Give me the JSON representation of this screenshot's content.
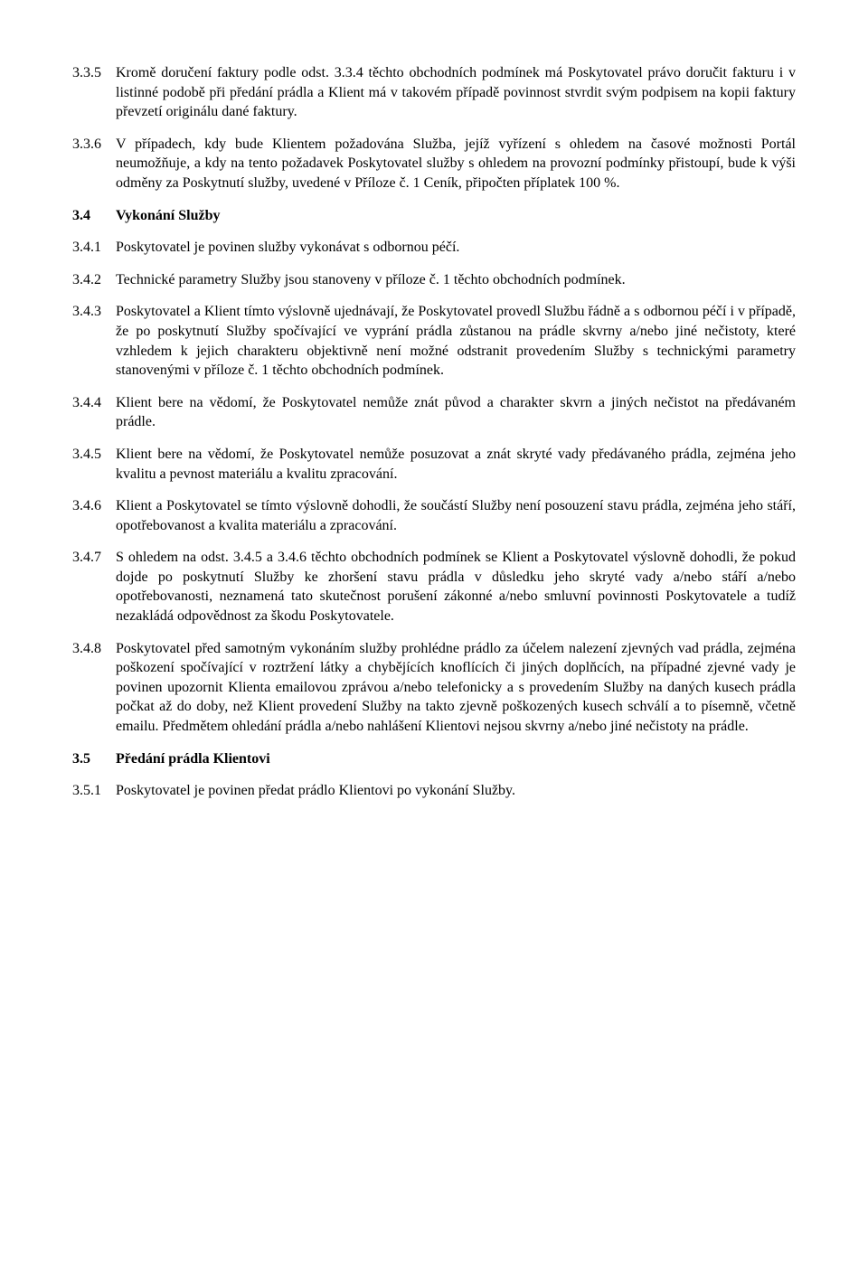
{
  "c335": {
    "num": "3.3.5",
    "text": "Kromě doručení faktury podle odst. 3.3.4 těchto obchodních podmínek má Poskytovatel právo doručit fakturu i v listinné podobě při předání prádla a Klient má v takovém případě povinnost stvrdit svým podpisem na kopii faktury převzetí originálu dané faktury."
  },
  "c336": {
    "num": "3.3.6",
    "text": "V případech, kdy bude Klientem požadována Služba, jejíž vyřízení s ohledem na časové možnosti Portál neumožňuje, a kdy na tento požadavek Poskytovatel služby s ohledem na provozní podmínky přistoupí, bude k výši odměny za Poskytnutí služby, uvedené v Příloze č. 1 Ceník, připočten příplatek 100 %."
  },
  "h34": {
    "num": "3.4",
    "text": "Vykonání Služby"
  },
  "c341": {
    "num": "3.4.1",
    "text": "Poskytovatel je povinen služby vykonávat s odbornou péčí."
  },
  "c342": {
    "num": "3.4.2",
    "text": "Technické parametry Služby jsou stanoveny v příloze č. 1 těchto obchodních podmínek."
  },
  "c343": {
    "num": "3.4.3",
    "text": "Poskytovatel a Klient tímto výslovně ujednávají, že Poskytovatel provedl Službu řádně a s odbornou péčí i v případě, že po poskytnutí Služby spočívající ve vyprání prádla zůstanou na prádle skvrny a/nebo jiné nečistoty, které vzhledem k jejich charakteru objektivně není možné odstranit provedením Služby s technickými parametry stanovenými v příloze č. 1 těchto obchodních podmínek."
  },
  "c344": {
    "num": "3.4.4",
    "text": "Klient bere na vědomí, že Poskytovatel nemůže znát původ a charakter skvrn a jiných nečistot na předávaném prádle."
  },
  "c345": {
    "num": "3.4.5",
    "text": "Klient bere na vědomí, že Poskytovatel nemůže posuzovat a znát  skryté vady předávaného prádla, zejména jeho kvalitu a pevnost materiálu a kvalitu zpracování."
  },
  "c346": {
    "num": "3.4.6",
    "text": "Klient a Poskytovatel se tímto výslovně dohodli, že součástí Služby není posouzení stavu prádla, zejména jeho stáří, opotřebovanost a kvalita materiálu a zpracování."
  },
  "c347": {
    "num": "3.4.7",
    "text": "S ohledem na odst. 3.4.5 a 3.4.6 těchto obchodních podmínek se Klient a Poskytovatel výslovně dohodli, že pokud dojde po poskytnutí Služby ke zhoršení stavu prádla v důsledku jeho skryté vady a/nebo stáří a/nebo opotřebovanosti, neznamená tato skutečnost porušení zákonné a/nebo smluvní povinnosti Poskytovatele a tudíž nezakládá odpovědnost za škodu Poskytovatele."
  },
  "c348": {
    "num": "3.4.8",
    "text": "Poskytovatel před samotným vykonáním služby prohlédne prádlo za účelem nalezení zjevných vad prádla, zejména poškození spočívající v roztržení látky a chybějících knoflících či jiných doplňcích, na případné zjevné vady je povinen upozornit Klienta emailovou zprávou a/nebo telefonicky a s provedením Služby na daných kusech prádla počkat až do doby, než Klient provedení Služby na takto zjevně poškozených kusech schválí a to písemně, včetně emailu. Předmětem ohledání prádla a/nebo nahlášení Klientovi nejsou skvrny a/nebo jiné nečistoty na prádle."
  },
  "h35": {
    "num": "3.5",
    "text": "Předání prádla Klientovi"
  },
  "c351": {
    "num": "3.5.1",
    "text": "Poskytovatel je povinen předat prádlo Klientovi po vykonání Služby."
  }
}
